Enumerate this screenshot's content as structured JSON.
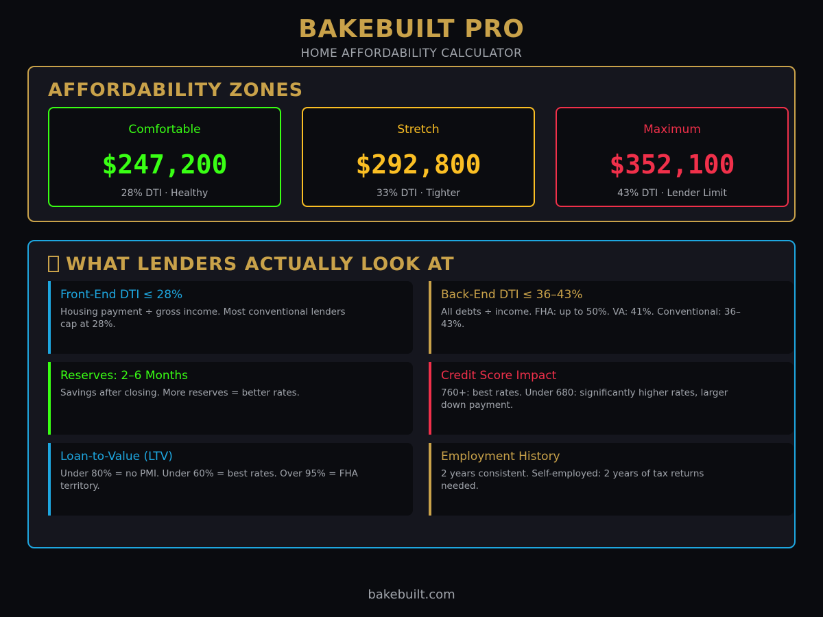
{
  "header": {
    "brand": "BAKEBUILT PRO",
    "subtitle": "HOME AFFORDABILITY CALCULATOR"
  },
  "colors": {
    "gold": "#c9a24a",
    "blue": "#1ea7e0",
    "green": "#39ff14",
    "amber": "#fbbf24",
    "red": "#f0304a"
  },
  "zones": {
    "title": "AFFORDABILITY ZONES",
    "cards": [
      {
        "label": "Comfortable",
        "value": "$247,200",
        "note": "28% DTI · Healthy",
        "color": "#39ff14"
      },
      {
        "label": "Stretch",
        "value": "$292,800",
        "note": "33% DTI · Tighter",
        "color": "#fbbf24"
      },
      {
        "label": "Maximum",
        "value": "$352,100",
        "note": "43% DTI · Lender Limit",
        "color": "#f0304a"
      }
    ]
  },
  "lenders": {
    "icon": "document-icon",
    "title": "WHAT LENDERS ACTUALLY LOOK AT",
    "cards": [
      {
        "title": "Front-End DTI ≤ 28%",
        "desc": "Housing payment ÷ gross income. Most conventional lenders cap at 28%.",
        "color": "#1ea7e0"
      },
      {
        "title": "Back-End DTI ≤ 36–43%",
        "desc": "All debts ÷ income. FHA: up to 50%. VA: 41%. Conventional: 36–43%.",
        "color": "#c9a24a"
      },
      {
        "title": "Reserves: 2–6 Months",
        "desc": "Savings after closing. More reserves = better rates.",
        "color": "#39ff14"
      },
      {
        "title": "Credit Score Impact",
        "desc": "760+: best rates. Under 680: significantly higher rates, larger down payment.",
        "color": "#f0304a"
      },
      {
        "title": "Loan-to-Value (LTV)",
        "desc": "Under 80% = no PMI. Under 60% = best rates. Over 95% = FHA territory.",
        "color": "#1ea7e0"
      },
      {
        "title": "Employment History",
        "desc": "2 years consistent. Self-employed: 2 years of tax returns needed.",
        "color": "#c9a24a"
      }
    ]
  },
  "footer": {
    "text": "bakebuilt.com"
  }
}
